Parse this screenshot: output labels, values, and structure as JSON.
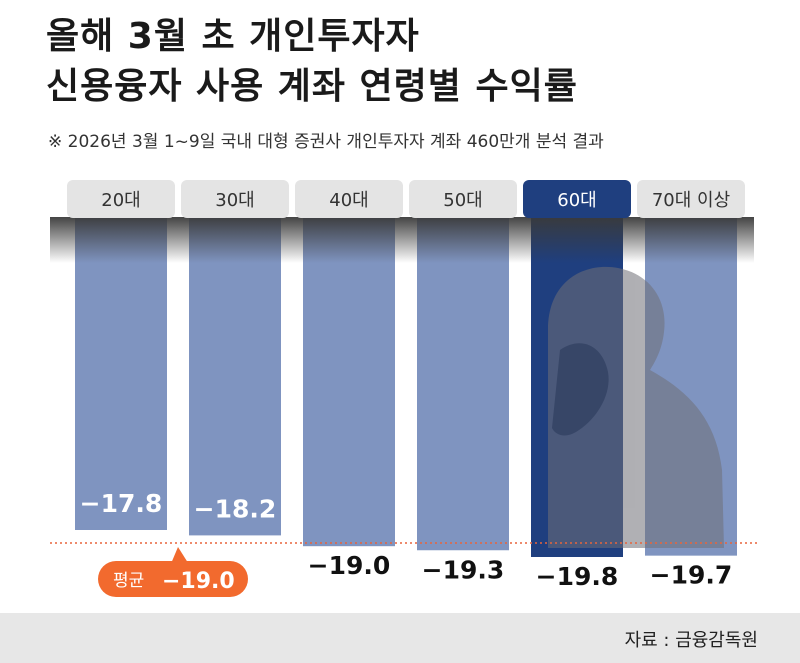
{
  "title_line1": "올해 3월 초 개인투자자",
  "title_line2": "신용융자 사용 계좌 연령별 수익률",
  "subtitle": "※ 2026년 3월 1~9일 국내 대형 증권사 개인투자자 계좌 460만개 분석 결과",
  "source": "자료 : 금융감독원",
  "colors": {
    "bar": "#7f94c0",
    "bar_highlight": "#1f3f7f",
    "tab": "#e4e4e4",
    "tab_highlight": "#1f3f7f",
    "average_line": "#e8643c",
    "average_badge": "#f26a2e"
  },
  "chart_data": {
    "type": "bar",
    "categories": [
      "20대",
      "30대",
      "40대",
      "50대",
      "60대",
      "70대 이상"
    ],
    "values": [
      -17.8,
      -18.2,
      -19.0,
      -19.3,
      -19.8,
      -19.7
    ],
    "value_labels": [
      "−17.8",
      "−18.2",
      "−19.0",
      "−19.3",
      "−19.8",
      "−19.7"
    ],
    "highlight_category": "60대",
    "average": {
      "label": "평균",
      "value": -19.0,
      "value_label": "−19.0"
    }
  }
}
